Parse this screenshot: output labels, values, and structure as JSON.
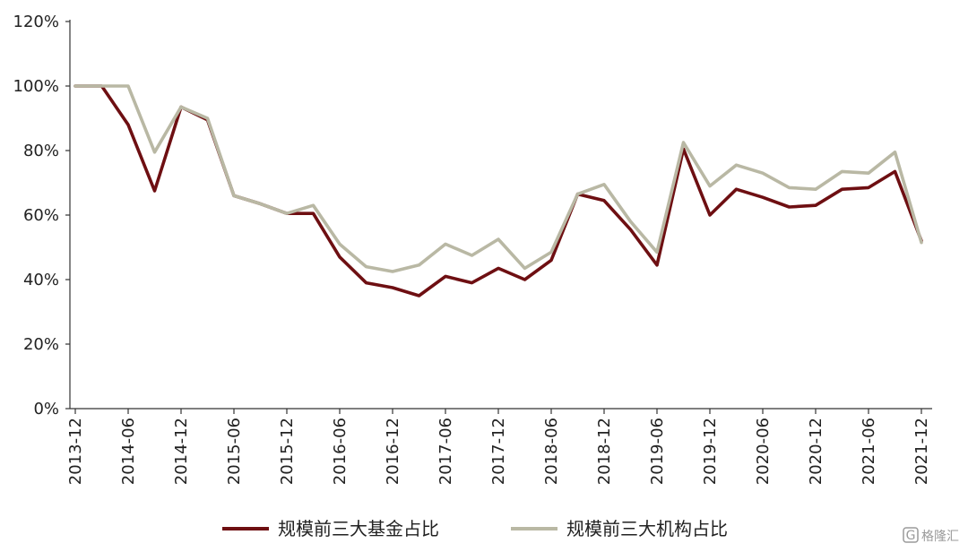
{
  "chart_data": {
    "type": "line",
    "title": "",
    "xlabel": "",
    "ylabel": "",
    "ylim": [
      0,
      120
    ],
    "y_ticks": [
      "0%",
      "20%",
      "40%",
      "60%",
      "80%",
      "100%",
      "120%"
    ],
    "y_tick_values": [
      0,
      20,
      40,
      60,
      80,
      100,
      120
    ],
    "x_tick_labels": [
      "2013-12",
      "2014-06",
      "2014-12",
      "2015-06",
      "2015-12",
      "2016-06",
      "2016-12",
      "2017-06",
      "2017-12",
      "2018-06",
      "2018-12",
      "2019-06",
      "2019-12",
      "2020-06",
      "2020-12",
      "2021-06",
      "2021-12"
    ],
    "x": [
      "2013-12",
      "2014-03",
      "2014-06",
      "2014-09",
      "2014-12",
      "2015-03",
      "2015-06",
      "2015-09",
      "2015-12",
      "2016-03",
      "2016-06",
      "2016-09",
      "2016-12",
      "2017-03",
      "2017-06",
      "2017-09",
      "2017-12",
      "2018-03",
      "2018-06",
      "2018-09",
      "2018-12",
      "2019-03",
      "2019-06",
      "2019-09",
      "2019-12",
      "2020-03",
      "2020-06",
      "2020-09",
      "2020-12",
      "2021-03",
      "2021-06",
      "2021-09",
      "2021-12"
    ],
    "series": [
      {
        "name": "规模前三大基金占比",
        "color": "#6e0f12",
        "values": [
          100,
          100,
          88,
          67.5,
          93.5,
          89.5,
          66,
          63.5,
          60.5,
          60.5,
          47,
          39,
          37.5,
          35,
          41,
          39,
          43.5,
          40,
          46,
          66.5,
          64.5,
          55.5,
          44.5,
          80.5,
          60,
          68,
          65.5,
          62.5,
          63,
          68,
          68.5,
          73.5,
          52
        ]
      },
      {
        "name": "规模前三大机构占比",
        "color": "#b9b8a4",
        "values": [
          100,
          100,
          100,
          79.5,
          93.5,
          90,
          66,
          63.5,
          60.5,
          63,
          51,
          44,
          42.5,
          44.5,
          51,
          47.5,
          52.5,
          43.5,
          48.5,
          66.5,
          69.5,
          58,
          48.5,
          82.5,
          69,
          75.5,
          73,
          68.5,
          68,
          73.5,
          73,
          79.5,
          51.5
        ]
      }
    ],
    "legend_position": "bottom",
    "grid": false
  },
  "watermark": {
    "icon": "g-logo-icon",
    "text": "格隆汇"
  }
}
